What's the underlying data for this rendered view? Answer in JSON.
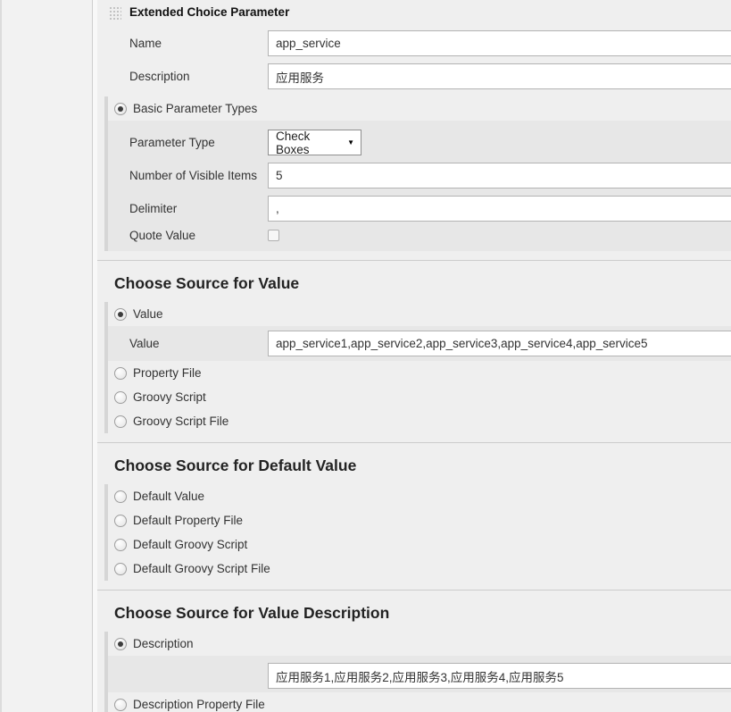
{
  "colors": {
    "page_bg": "#efefef",
    "sidebar_bg": "#f2f2f2",
    "nested_bg": "#e7e7e7",
    "input_bg": "#ffffff",
    "divider": "#cccccc",
    "indent_bar": "#d6d6d6"
  },
  "panel": {
    "title": "Extended Choice Parameter",
    "name_row": {
      "label": "Name",
      "value": "app_service"
    },
    "description_row": {
      "label": "Description",
      "value": "应用服务"
    },
    "basic_types": {
      "label": "Basic Parameter Types",
      "selected": true,
      "parameter_type": {
        "label": "Parameter Type",
        "value": "Check Boxes"
      },
      "visible_items": {
        "label": "Number of Visible Items",
        "value": "5"
      },
      "delimiter": {
        "label": "Delimiter",
        "value": ","
      },
      "quote_value": {
        "label": "Quote Value",
        "checked": false
      }
    }
  },
  "value_section": {
    "heading": "Choose Source for Value",
    "value_option": {
      "label": "Value",
      "selected": true
    },
    "value_field": {
      "label": "Value",
      "value": "app_service1,app_service2,app_service3,app_service4,app_service5"
    },
    "property_file_option": {
      "label": "Property File",
      "selected": false
    },
    "groovy_script_option": {
      "label": "Groovy Script",
      "selected": false
    },
    "groovy_script_file_option": {
      "label": "Groovy Script File",
      "selected": false
    }
  },
  "default_section": {
    "heading": "Choose Source for Default Value",
    "default_value_option": {
      "label": "Default Value",
      "selected": false
    },
    "default_property_file_option": {
      "label": "Default Property File",
      "selected": false
    },
    "default_groovy_script_option": {
      "label": "Default Groovy Script",
      "selected": false
    },
    "default_groovy_script_file_option": {
      "label": "Default Groovy Script File",
      "selected": false
    }
  },
  "description_section": {
    "heading": "Choose Source for Value Description",
    "description_option": {
      "label": "Description",
      "selected": true
    },
    "description_field": {
      "value": "应用服务1,应用服务2,应用服务3,应用服务4,应用服务5"
    },
    "description_property_file_option": {
      "label": "Description Property File",
      "selected": false
    }
  }
}
